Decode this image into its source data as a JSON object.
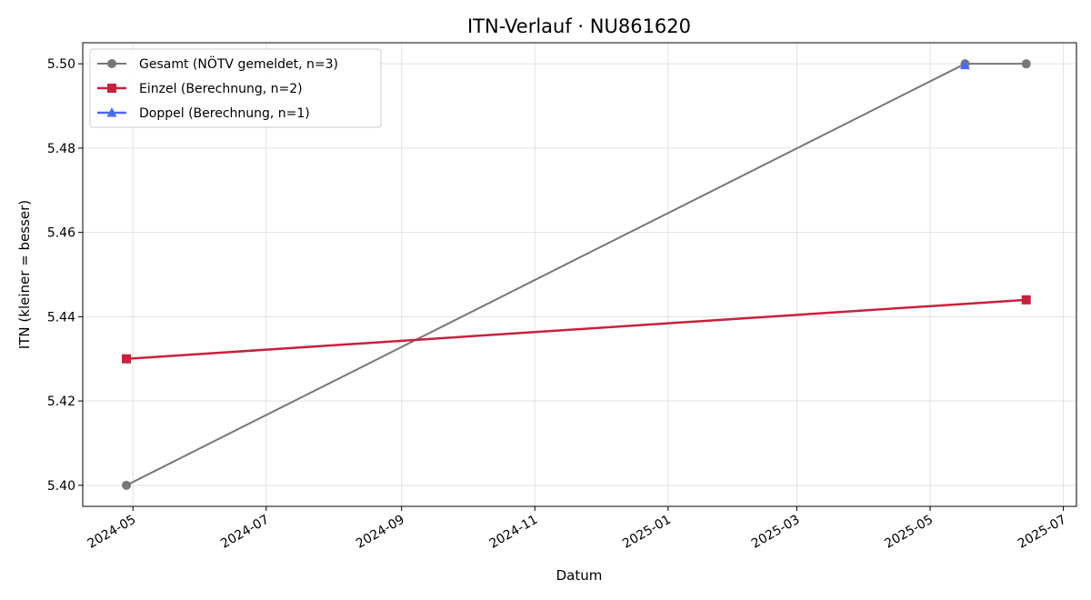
{
  "chart_data": {
    "type": "line",
    "title": "ITN-Verlauf · NU861620",
    "xlabel": "Datum",
    "ylabel": "ITN  (kleiner = besser)",
    "xlim": [
      "2024-04-08",
      "2025-07-07"
    ],
    "ylim": [
      5.395,
      5.505
    ],
    "grid": true,
    "legend_position": "top-left",
    "x_ticks": [
      "2024-05",
      "2024-07",
      "2024-09",
      "2024-11",
      "2025-01",
      "2025-03",
      "2025-05",
      "2025-07"
    ],
    "y_ticks": [
      "5.40",
      "5.42",
      "5.44",
      "5.46",
      "5.48",
      "5.50"
    ],
    "series": [
      {
        "name": "Gesamt (NÖTV gemeldet, n=3)",
        "color": "#777777",
        "marker": "circle",
        "points": [
          {
            "x": "2024-04-28",
            "y": 5.4
          },
          {
            "x": "2025-05-17",
            "y": 5.5
          },
          {
            "x": "2025-06-14",
            "y": 5.5
          }
        ]
      },
      {
        "name": "Einzel (Berechnung, n=2)",
        "color": "#c8203f",
        "marker": "square",
        "points": [
          {
            "x": "2024-04-28",
            "y": 5.43
          },
          {
            "x": "2025-06-14",
            "y": 5.444
          }
        ]
      },
      {
        "name": "Doppel (Berechnung, n=1)",
        "color": "#4a6af0",
        "marker": "triangle",
        "points": [
          {
            "x": "2025-05-17",
            "y": 5.4997
          }
        ]
      }
    ]
  }
}
